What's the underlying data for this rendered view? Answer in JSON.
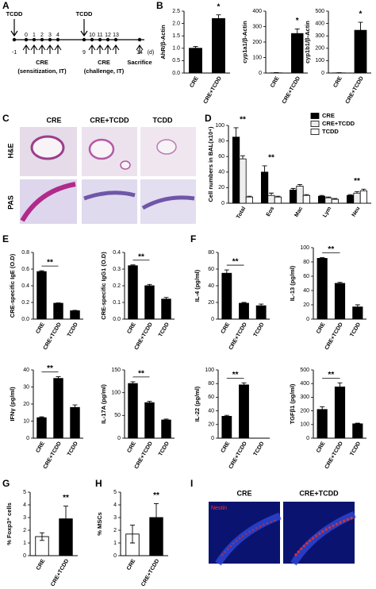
{
  "panel_labels": [
    "A",
    "B",
    "C",
    "D",
    "E",
    "F",
    "G",
    "H",
    "I"
  ],
  "timeline": {
    "drugs": [
      "TCDD",
      "TCDD"
    ],
    "days": [
      "-1",
      "0",
      "1",
      "2",
      "3",
      "4",
      "9",
      "10",
      "11",
      "12",
      "13",
      "14"
    ],
    "unit": "(d)",
    "phases": [
      {
        "name": "CRE",
        "route": "(sensitization, IT)"
      },
      {
        "name": "CRE",
        "route": "(challenge, IT)"
      }
    ],
    "end": "Sacrifice"
  },
  "histology": {
    "columns": [
      "CRE",
      "CRE+TCDD",
      "TCDD"
    ],
    "rows": [
      "H&E",
      "PAS"
    ]
  },
  "fluorescence": {
    "columns": [
      "CRE",
      "CRE+TCDD"
    ],
    "stain": "Nestin"
  },
  "chart_data": [
    {
      "type": "bar",
      "ylabel": "AhR/β-Actin",
      "categories": [
        "CRE",
        "CRE+TCDD"
      ],
      "values": [
        1.0,
        2.2
      ],
      "errors": [
        0.07,
        0.15
      ],
      "colors": [
        "#000000",
        "#000000"
      ],
      "ylim": [
        0,
        2.5
      ],
      "yticks": [
        {
          "value": 0,
          "label": "0.0"
        },
        0.5,
        {
          "value": 1,
          "label": "1.0"
        },
        1.5,
        {
          "value": 2,
          "label": "2.0"
        },
        2.5
      ],
      "annotations": [
        "*"
      ]
    },
    {
      "type": "bar",
      "ylabel": "cyp1a1/β-Actin",
      "categories": [
        "CRE",
        "CRE+TCDD"
      ],
      "values": [
        1,
        255
      ],
      "errors": [
        2,
        30
      ],
      "colors": [
        "#000000",
        "#000000"
      ],
      "ylim": [
        0,
        400
      ],
      "yticks": [
        0,
        100,
        200,
        300,
        400
      ],
      "annotations": [
        "*"
      ]
    },
    {
      "type": "bar",
      "ylabel": "cyp1b1/β-Actin",
      "categories": [
        "CRE",
        "CRE+TCDD"
      ],
      "values": [
        1,
        345
      ],
      "errors": [
        2,
        65
      ],
      "colors": [
        "#000000",
        "#000000"
      ],
      "ylim": [
        0,
        500
      ],
      "yticks": [
        0,
        100,
        200,
        300,
        400,
        500
      ],
      "annotations": [
        "*"
      ]
    },
    {
      "type": "grouped_bar",
      "ylabel": "Cell numbers in BAL(x10⁴)",
      "categories": [
        "Total",
        "Eos",
        "Mac",
        "Lym",
        "Neu"
      ],
      "series": [
        {
          "name": "CRE",
          "color": "#000000",
          "values": [
            85,
            40,
            17,
            9,
            10
          ],
          "errors": [
            12,
            8,
            2,
            1,
            1
          ]
        },
        {
          "name": "CRE+TCDD",
          "color": "#eeeeee",
          "values": [
            57,
            10,
            22,
            7,
            13
          ],
          "errors": [
            4,
            3,
            2,
            1,
            2
          ]
        },
        {
          "name": "TCDD",
          "color": "#ffffff",
          "values": [
            8,
            8,
            10,
            5,
            16
          ],
          "errors": [
            1,
            1,
            1,
            1,
            2
          ]
        }
      ],
      "ylim": [
        0,
        100
      ],
      "yticks": [
        0,
        20,
        40,
        60,
        80,
        100
      ],
      "annotations": [
        "**",
        "**",
        "**"
      ]
    },
    {
      "type": "bar",
      "ylabel": "CRE-specific IgE (O.D)",
      "categories": [
        "CRE",
        "CRE+TCDD",
        "TCDD"
      ],
      "values": [
        0.57,
        0.19,
        0.1
      ],
      "errors": [
        0.01,
        0.005,
        0.005
      ],
      "colors": [
        "#000000",
        "#000000",
        "#000000"
      ],
      "ylim": [
        0,
        0.8
      ],
      "yticks": [
        {
          "value": 0,
          "label": "0.0"
        },
        0.2,
        0.4,
        0.6,
        0.8
      ],
      "annotations": [
        "**"
      ]
    },
    {
      "type": "bar",
      "ylabel": "CRE-specific IgG1 (O.D)",
      "categories": [
        "CRE",
        "CRE+TCDD",
        "TCDD"
      ],
      "values": [
        0.32,
        0.2,
        0.12
      ],
      "errors": [
        0.005,
        0.008,
        0.01
      ],
      "colors": [
        "#000000",
        "#000000",
        "#000000"
      ],
      "ylim": [
        0,
        0.4
      ],
      "yticks": [
        {
          "value": 0,
          "label": "0.0"
        },
        0.1,
        0.2,
        0.3,
        0.4
      ],
      "annotations": [
        "**"
      ]
    },
    {
      "type": "bar",
      "ylabel": "IL-4 (pg/ml)",
      "categories": [
        "CRE",
        "CRE+TCDD",
        "TCDD"
      ],
      "values": [
        55,
        19,
        16
      ],
      "errors": [
        4,
        1,
        2
      ],
      "colors": [
        "#000000",
        "#000000",
        "#000000"
      ],
      "ylim": [
        0,
        80
      ],
      "yticks": [
        0,
        20,
        40,
        60,
        80
      ],
      "annotations": [
        "**"
      ]
    },
    {
      "type": "bar",
      "ylabel": "IL-13 (pg/ml)",
      "categories": [
        "CRE",
        "CRE+TCDD",
        "TCDD"
      ],
      "values": [
        85,
        50,
        17
      ],
      "errors": [
        1,
        1.5,
        3
      ],
      "colors": [
        "#000000",
        "#000000",
        "#000000"
      ],
      "ylim": [
        0,
        100
      ],
      "yticks": [
        0,
        20,
        40,
        60,
        80,
        100
      ],
      "annotations": [
        "**"
      ]
    },
    {
      "type": "bar",
      "ylabel": "IFNγ (pg/ml)",
      "categories": [
        "CRE",
        "CRE+TCDD",
        "TCDD"
      ],
      "values": [
        12,
        35,
        18
      ],
      "errors": [
        0.5,
        1,
        1.5
      ],
      "colors": [
        "#000000",
        "#000000",
        "#000000"
      ],
      "ylim": [
        0,
        40
      ],
      "yticks": [
        0,
        10,
        20,
        30,
        40
      ],
      "annotations": [
        "**"
      ]
    },
    {
      "type": "bar",
      "ylabel": "IL-17A (pg/ml)",
      "categories": [
        "CRE",
        "CRE+TCDD",
        "TCDD"
      ],
      "values": [
        120,
        78,
        40
      ],
      "errors": [
        4,
        3,
        2
      ],
      "colors": [
        "#000000",
        "#000000",
        "#000000"
      ],
      "ylim": [
        0,
        150
      ],
      "yticks": [
        0,
        50,
        100,
        150
      ],
      "annotations": [
        "**"
      ]
    },
    {
      "type": "bar",
      "ylabel": "IL-22 (pg/ml)",
      "categories": [
        "CRE",
        "CRE+TCDD",
        "TCDD"
      ],
      "values": [
        32,
        78,
        0
      ],
      "errors": [
        1.5,
        3,
        0
      ],
      "colors": [
        "#000000",
        "#000000",
        "#000000"
      ],
      "ylim": [
        0,
        100
      ],
      "yticks": [
        0,
        20,
        40,
        60,
        80,
        100
      ],
      "annotations": [
        "**"
      ]
    },
    {
      "type": "bar",
      "ylabel": "TGFβ1 (pg/ml)",
      "categories": [
        "CRE",
        "CRE+TCDD",
        "TCDD"
      ],
      "values": [
        210,
        375,
        105
      ],
      "errors": [
        20,
        30,
        5
      ],
      "colors": [
        "#000000",
        "#000000",
        "#000000"
      ],
      "ylim": [
        0,
        500
      ],
      "yticks": [
        0,
        100,
        200,
        300,
        400,
        500
      ],
      "annotations": [
        "**"
      ]
    },
    {
      "type": "bar",
      "ylabel": "% Foxp3⁺ cells",
      "categories": [
        "CRE",
        "CRE+TCDD"
      ],
      "values": [
        1.5,
        2.9
      ],
      "errors": [
        0.3,
        1.0
      ],
      "colors": [
        "#ffffff",
        "#000000"
      ],
      "ylim": [
        0,
        5
      ],
      "yticks": [
        0,
        1,
        2,
        3,
        4,
        5
      ],
      "annotations": [
        "**"
      ]
    },
    {
      "type": "bar",
      "ylabel": "% MSCs",
      "categories": [
        "CRE",
        "CRE+TCDD"
      ],
      "values": [
        1.7,
        3.0
      ],
      "errors": [
        0.7,
        1.1
      ],
      "colors": [
        "#ffffff",
        "#000000"
      ],
      "ylim": [
        0,
        5
      ],
      "yticks": [
        0,
        1,
        2,
        3,
        4,
        5
      ],
      "annotations": [
        "**"
      ]
    }
  ]
}
